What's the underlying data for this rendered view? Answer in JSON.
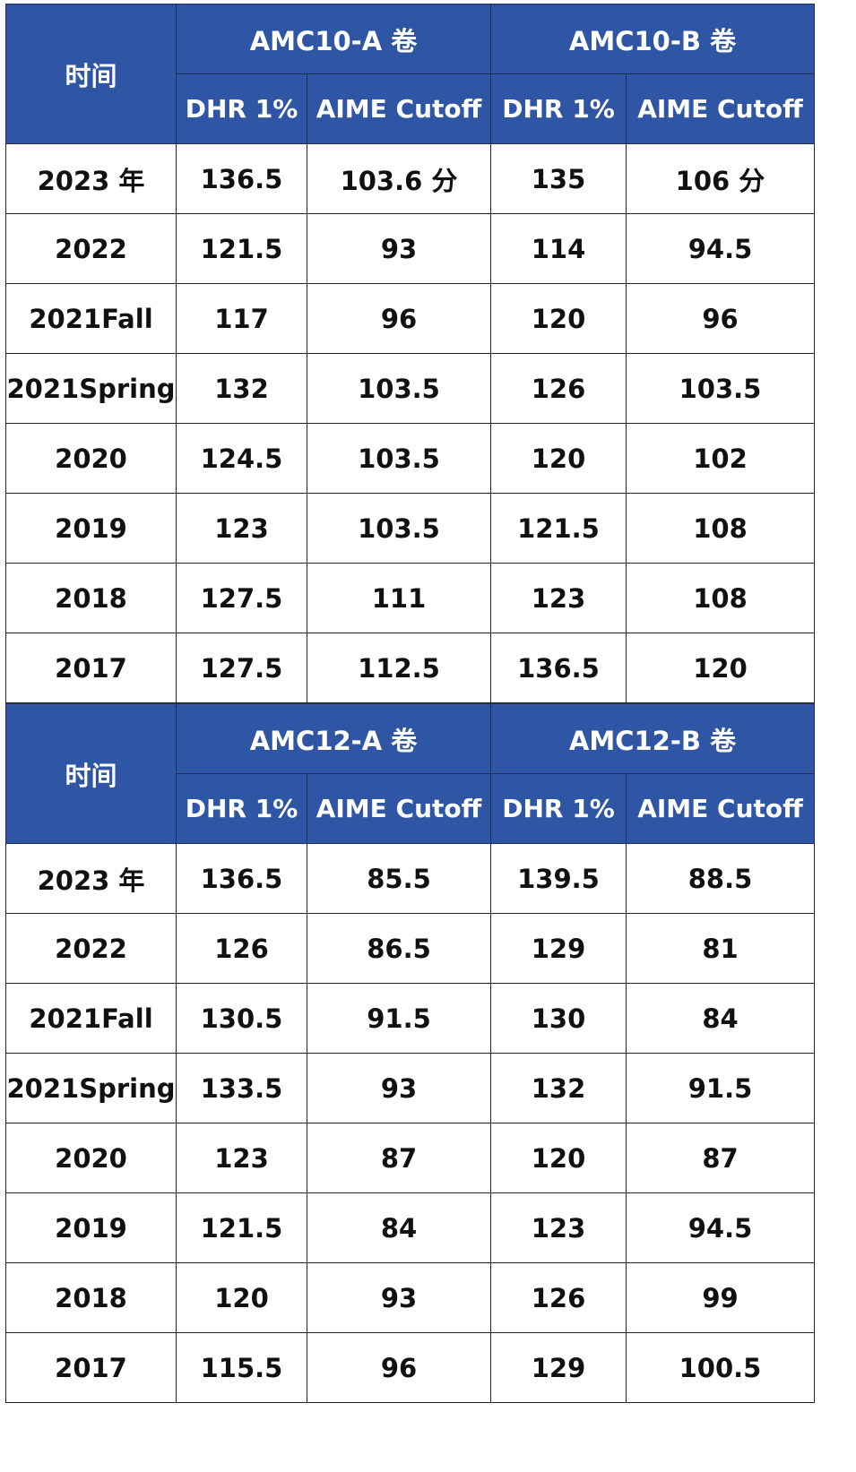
{
  "colors": {
    "header_bg": "#2f56a4",
    "header_text": "#ffffff",
    "cell_text": "#111111",
    "grid": "#222222"
  },
  "chart_data": [
    {
      "type": "table",
      "row_header": "时间",
      "groups": [
        "AMC10-A 卷",
        "AMC10-B 卷"
      ],
      "columns": [
        "DHR 1%",
        "AIME Cutoff",
        "DHR 1%",
        "AIME Cutoff"
      ],
      "rows": [
        {
          "year": "2023 年",
          "values": [
            "136.5",
            "103.6 分",
            "135",
            "106 分"
          ]
        },
        {
          "year": "2022",
          "values": [
            "121.5",
            "93",
            "114",
            "94.5"
          ]
        },
        {
          "year": "2021Fall",
          "values": [
            "117",
            "96",
            "120",
            "96"
          ]
        },
        {
          "year": "2021Spring",
          "values": [
            "132",
            "103.5",
            "126",
            "103.5"
          ]
        },
        {
          "year": "2020",
          "values": [
            "124.5",
            "103.5",
            "120",
            "102"
          ]
        },
        {
          "year": "2019",
          "values": [
            "123",
            "103.5",
            "121.5",
            "108"
          ]
        },
        {
          "year": "2018",
          "values": [
            "127.5",
            "111",
            "123",
            "108"
          ]
        },
        {
          "year": "2017",
          "values": [
            "127.5",
            "112.5",
            "136.5",
            "120"
          ]
        }
      ]
    },
    {
      "type": "table",
      "row_header": "时间",
      "groups": [
        "AMC12-A 卷",
        "AMC12-B 卷"
      ],
      "columns": [
        "DHR 1%",
        "AIME Cutoff",
        "DHR 1%",
        "AIME Cutoff"
      ],
      "rows": [
        {
          "year": "2023 年",
          "values": [
            "136.5",
            "85.5",
            "139.5",
            "88.5"
          ]
        },
        {
          "year": "2022",
          "values": [
            "126",
            "86.5",
            "129",
            "81"
          ]
        },
        {
          "year": "2021Fall",
          "values": [
            "130.5",
            "91.5",
            "130",
            "84"
          ]
        },
        {
          "year": "2021Spring",
          "values": [
            "133.5",
            "93",
            "132",
            "91.5"
          ]
        },
        {
          "year": "2020",
          "values": [
            "123",
            "87",
            "120",
            "87"
          ]
        },
        {
          "year": "2019",
          "values": [
            "121.5",
            "84",
            "123",
            "94.5"
          ]
        },
        {
          "year": "2018",
          "values": [
            "120",
            "93",
            "126",
            "99"
          ]
        },
        {
          "year": "2017",
          "values": [
            "115.5",
            "96",
            "129",
            "100.5"
          ]
        }
      ]
    }
  ]
}
